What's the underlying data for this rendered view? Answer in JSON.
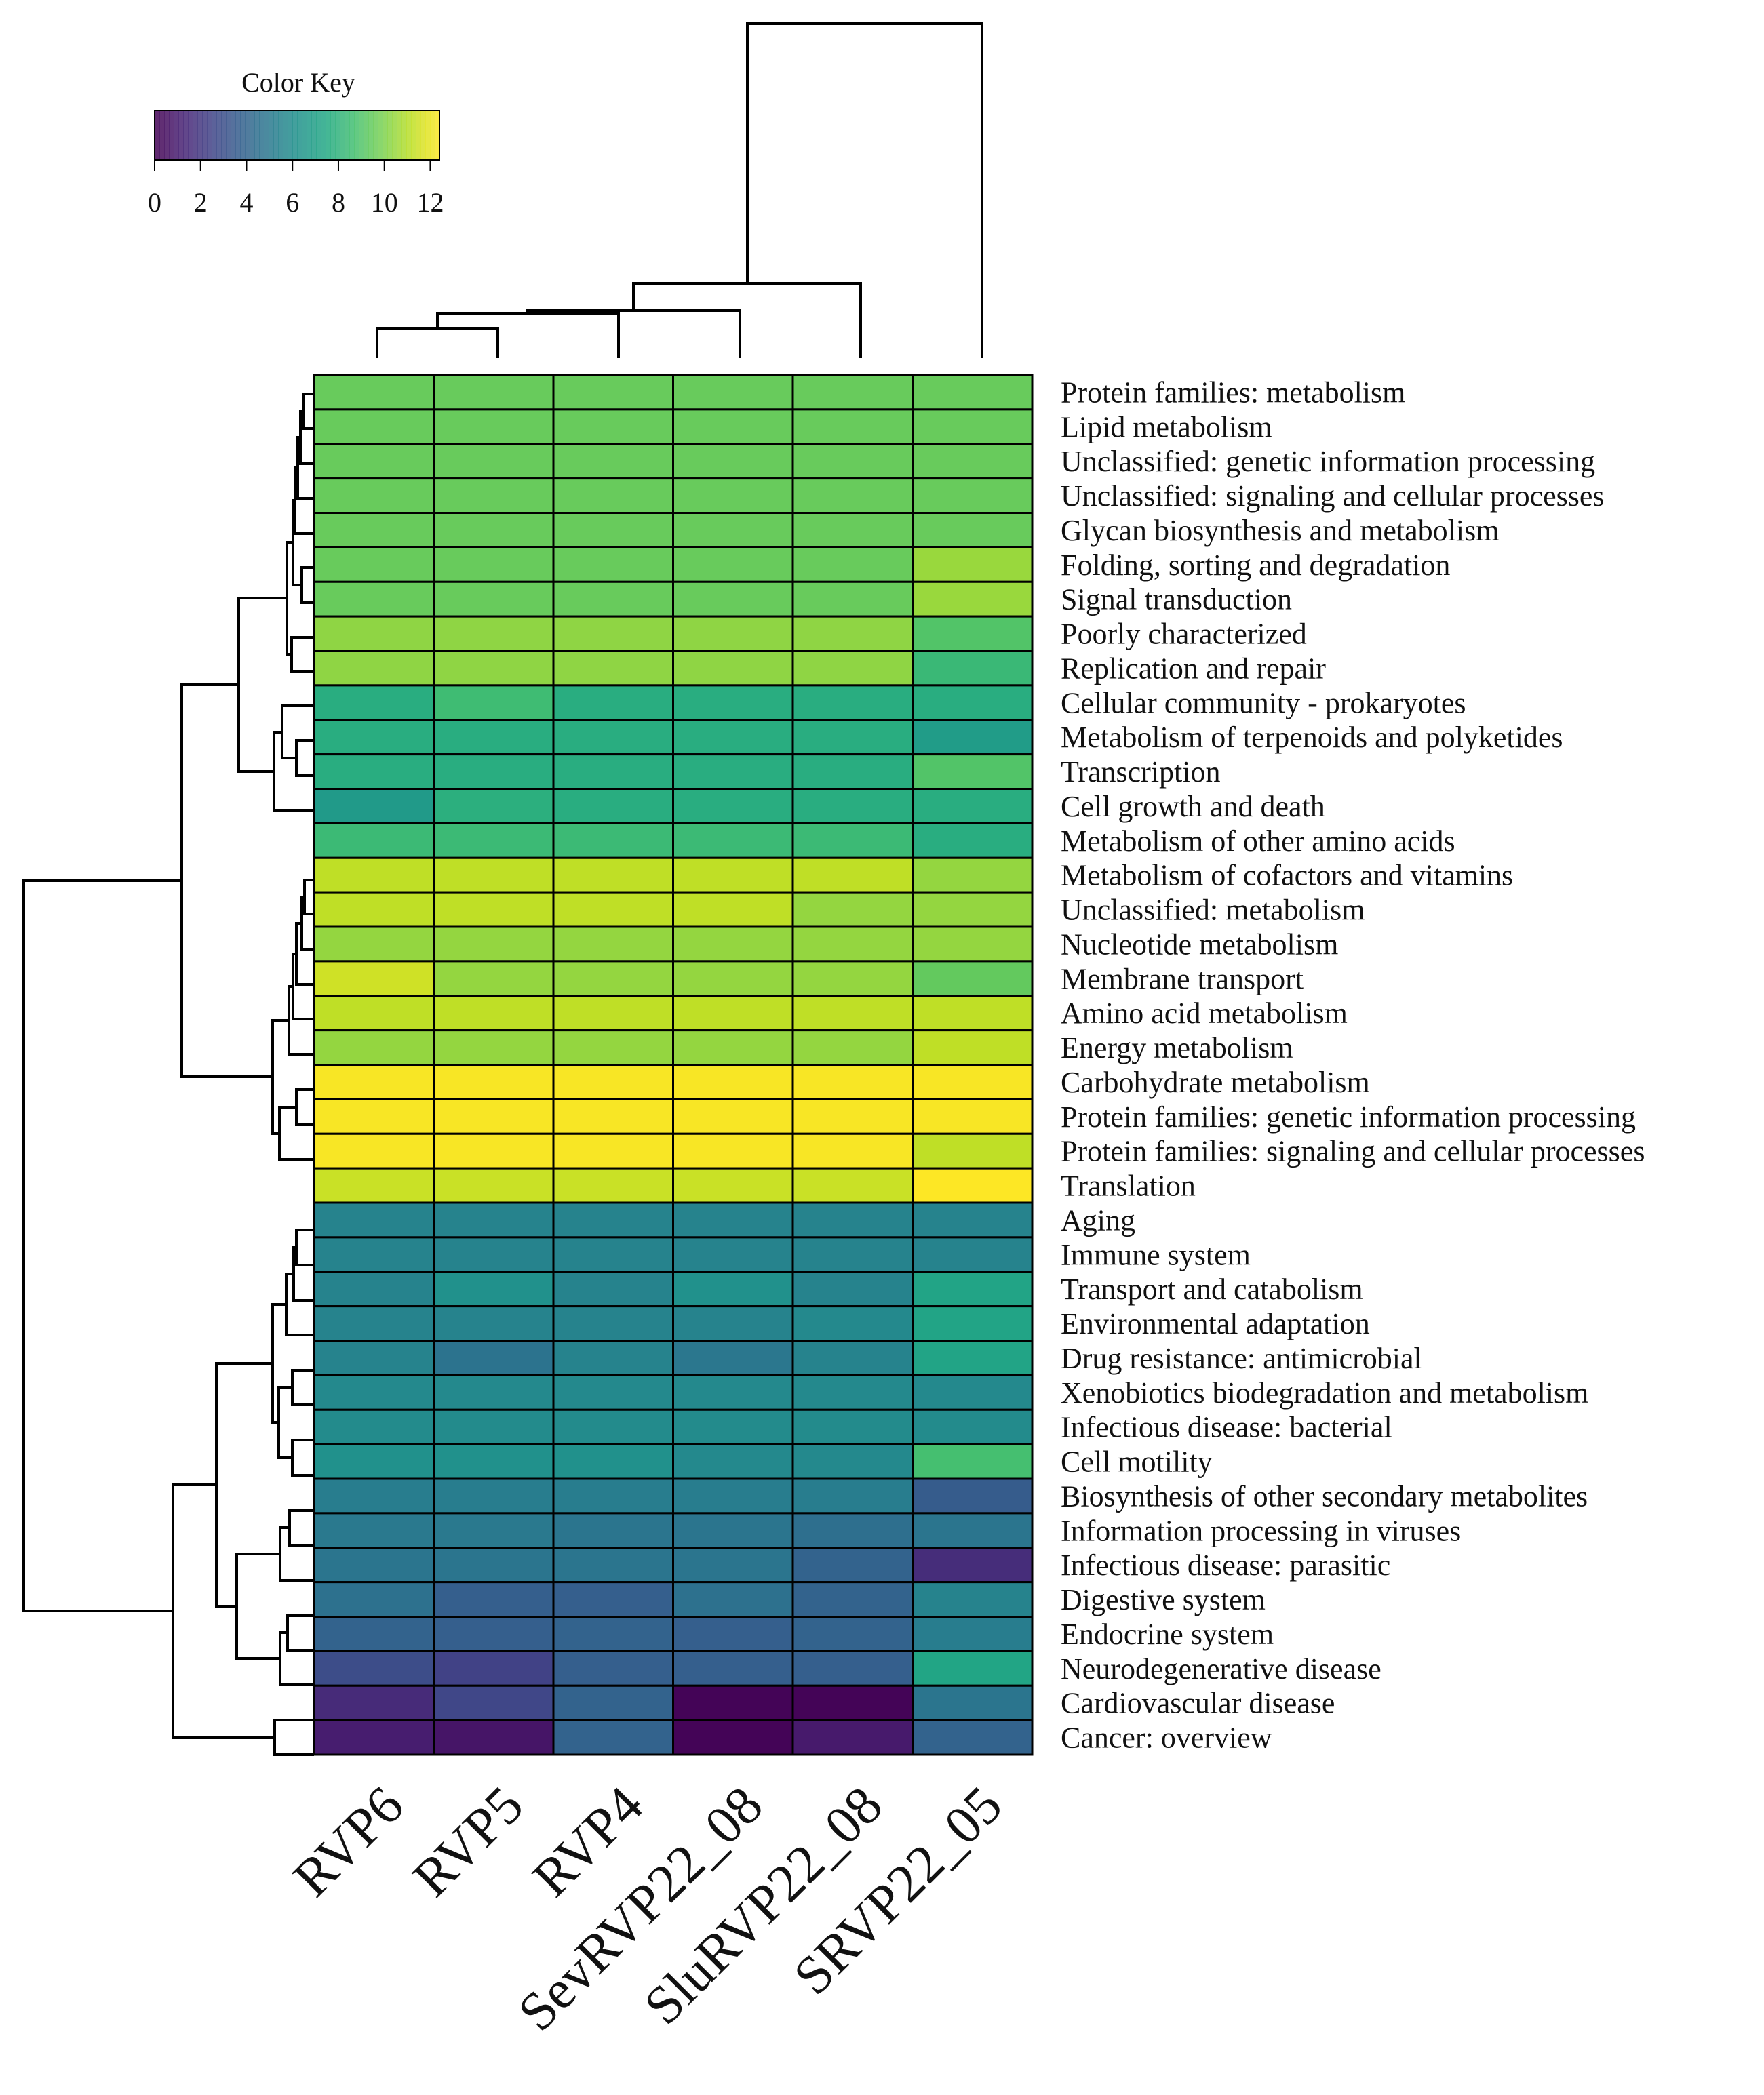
{
  "chart_data": {
    "type": "heatmap",
    "title": "",
    "color_key": {
      "title": "Color Key",
      "ticks": [
        "0",
        "2",
        "4",
        "6",
        "8",
        "10",
        "12"
      ],
      "range": [
        0,
        12.4
      ],
      "palette": "viridis"
    },
    "columns": [
      "RVP6",
      "RVP5",
      "RVP4",
      "SevRVP22_08",
      "SluRVP22_08",
      "SRVP22_05"
    ],
    "rows": [
      "Protein families: metabolism",
      "Lipid metabolism",
      "Unclassified: genetic information processing",
      "Unclassified: signaling and cellular processes",
      "Glycan biosynthesis and metabolism",
      "Folding, sorting and degradation",
      "Signal transduction",
      "Poorly characterized",
      "Replication and repair",
      "Cellular community - prokaryotes",
      "Metabolism of terpenoids and polyketides",
      "Transcription",
      "Cell growth and death",
      "Metabolism of other amino acids",
      "Metabolism of cofactors and vitamins",
      "Unclassified: metabolism",
      "Nucleotide metabolism",
      "Membrane transport",
      "Amino acid metabolism",
      "Energy metabolism",
      "Carbohydrate metabolism",
      "Protein families: genetic information processing",
      "Protein families: signaling and cellular processes",
      "Translation",
      "Aging",
      "Immune system",
      "Transport and catabolism",
      "Environmental adaptation",
      "Drug resistance: antimicrobial",
      "Xenobiotics biodegradation and metabolism",
      "Infectious disease: bacterial",
      "Cell motility",
      "Biosynthesis of other secondary metabolites",
      "Information processing in viruses",
      "Infectious disease: parasitic",
      "Digestive system",
      "Endocrine system",
      "Neurodegenerative disease",
      "Cardiovascular disease",
      "Cancer: overview"
    ],
    "values": [
      [
        9.5,
        9.5,
        9.5,
        9.5,
        9.5,
        9.5
      ],
      [
        9.5,
        9.5,
        9.5,
        9.5,
        9.5,
        9.5
      ],
      [
        9.5,
        9.5,
        9.5,
        9.5,
        9.5,
        9.5
      ],
      [
        9.5,
        9.5,
        9.5,
        9.5,
        9.5,
        9.5
      ],
      [
        9.5,
        9.5,
        9.5,
        9.5,
        9.5,
        9.5
      ],
      [
        9.5,
        9.5,
        9.5,
        9.5,
        9.5,
        10.5
      ],
      [
        9.5,
        9.5,
        9.5,
        9.5,
        9.5,
        10.5
      ],
      [
        10.3,
        10.3,
        10.3,
        10.3,
        10.3,
        9.0
      ],
      [
        10.3,
        10.3,
        10.3,
        10.3,
        10.3,
        8.3
      ],
      [
        7.7,
        8.5,
        7.7,
        7.7,
        7.7,
        7.7
      ],
      [
        7.7,
        7.7,
        7.7,
        7.7,
        7.7,
        6.8
      ],
      [
        7.7,
        7.7,
        7.7,
        7.7,
        7.7,
        9.0
      ],
      [
        6.7,
        7.8,
        7.7,
        7.7,
        7.7,
        7.7
      ],
      [
        8.4,
        8.4,
        8.4,
        8.4,
        8.4,
        7.7
      ],
      [
        11.2,
        11.2,
        11.2,
        11.2,
        11.2,
        10.4
      ],
      [
        11.2,
        11.2,
        11.2,
        11.2,
        10.4,
        10.4
      ],
      [
        10.4,
        10.4,
        10.4,
        10.4,
        10.4,
        10.4
      ],
      [
        11.5,
        10.4,
        10.4,
        10.4,
        10.4,
        9.4
      ],
      [
        11.2,
        11.2,
        11.2,
        11.2,
        11.2,
        11.2
      ],
      [
        10.4,
        10.4,
        10.4,
        10.4,
        10.4,
        11.2
      ],
      [
        12.3,
        12.3,
        12.3,
        12.3,
        12.3,
        12.3
      ],
      [
        12.3,
        12.3,
        12.3,
        12.3,
        12.3,
        12.3
      ],
      [
        12.3,
        12.3,
        12.3,
        12.3,
        12.3,
        11.2
      ],
      [
        11.4,
        11.4,
        11.4,
        11.4,
        11.4,
        12.4
      ],
      [
        5.5,
        5.5,
        5.5,
        5.5,
        5.5,
        5.5
      ],
      [
        5.5,
        5.5,
        5.5,
        5.5,
        5.5,
        5.5
      ],
      [
        5.5,
        6.2,
        5.5,
        6.2,
        5.5,
        7.2
      ],
      [
        5.5,
        5.5,
        5.5,
        5.5,
        5.8,
        7.2
      ],
      [
        5.5,
        4.7,
        5.5,
        4.9,
        5.5,
        7.2
      ],
      [
        5.8,
        5.8,
        5.8,
        5.8,
        5.8,
        5.8
      ],
      [
        5.9,
        5.9,
        5.9,
        5.9,
        5.9,
        5.9
      ],
      [
        6.2,
        6.2,
        6.2,
        5.8,
        5.8,
        8.7
      ],
      [
        5.2,
        5.2,
        5.2,
        5.2,
        5.2,
        3.6
      ],
      [
        5.0,
        5.0,
        4.8,
        4.8,
        4.5,
        4.8
      ],
      [
        4.8,
        4.8,
        4.8,
        4.8,
        3.9,
        1.6
      ],
      [
        4.6,
        3.7,
        3.7,
        4.6,
        3.9,
        5.5
      ],
      [
        3.9,
        3.7,
        3.9,
        3.7,
        3.9,
        5.2
      ],
      [
        2.9,
        2.4,
        3.7,
        3.7,
        3.7,
        7.3
      ],
      [
        1.5,
        2.6,
        3.9,
        0.1,
        0.1,
        4.8
      ],
      [
        1.0,
        0.7,
        3.9,
        0.1,
        0.9,
        3.9
      ]
    ]
  }
}
